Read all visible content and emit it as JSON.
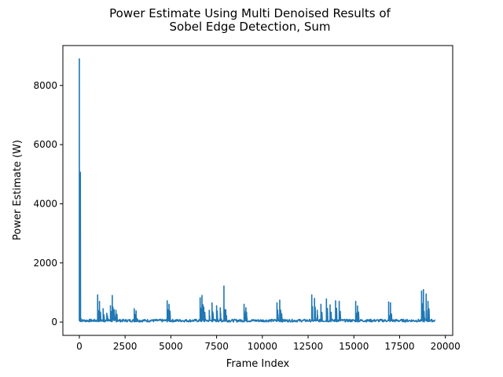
{
  "chart_data": {
    "type": "line",
    "title_line1": "Power Estimate Using Multi Denoised Results of",
    "title_line2": "Sobel Edge Detection, Sum",
    "xlabel": "Frame Index",
    "ylabel": "Power Estimate (W)",
    "xlim": [
      -900,
      20400
    ],
    "ylim": [
      -450,
      9350
    ],
    "xticks": [
      0,
      2500,
      5000,
      7500,
      10000,
      12500,
      15000,
      17500,
      20000
    ],
    "xtick_labels": [
      "0",
      "2500",
      "5000",
      "7500",
      "10000",
      "12500",
      "15000",
      "17500",
      "20000"
    ],
    "yticks": [
      0,
      2000,
      4000,
      6000,
      8000
    ],
    "ytick_labels": [
      "0",
      "2000",
      "4000",
      "6000",
      "8000"
    ],
    "grid": false,
    "color": "#1f77b4",
    "series": [
      {
        "baseline": 50,
        "n_frames": 19450,
        "spikes": [
          [
            0,
            8900
          ],
          [
            30,
            150
          ],
          [
            1000,
            920
          ],
          [
            1100,
            700
          ],
          [
            1300,
            450
          ],
          [
            1500,
            300
          ],
          [
            1700,
            550
          ],
          [
            1800,
            900
          ],
          [
            1900,
            420
          ],
          [
            2000,
            400
          ],
          [
            3000,
            450
          ],
          [
            3100,
            380
          ],
          [
            4800,
            720
          ],
          [
            4900,
            600
          ],
          [
            6600,
            820
          ],
          [
            6700,
            900
          ],
          [
            6800,
            500
          ],
          [
            7100,
            400
          ],
          [
            7250,
            650
          ],
          [
            7500,
            550
          ],
          [
            7700,
            480
          ],
          [
            7900,
            1220
          ],
          [
            8000,
            420
          ],
          [
            9000,
            600
          ],
          [
            9100,
            480
          ],
          [
            10800,
            650
          ],
          [
            10950,
            740
          ],
          [
            11000,
            400
          ],
          [
            12700,
            920
          ],
          [
            12850,
            800
          ],
          [
            13000,
            400
          ],
          [
            13200,
            600
          ],
          [
            13500,
            780
          ],
          [
            13700,
            580
          ],
          [
            14000,
            720
          ],
          [
            14200,
            700
          ],
          [
            15100,
            700
          ],
          [
            15200,
            540
          ],
          [
            16900,
            680
          ],
          [
            17000,
            650
          ],
          [
            18700,
            1050
          ],
          [
            18800,
            1100
          ],
          [
            18950,
            950
          ],
          [
            19050,
            700
          ]
        ]
      }
    ]
  }
}
